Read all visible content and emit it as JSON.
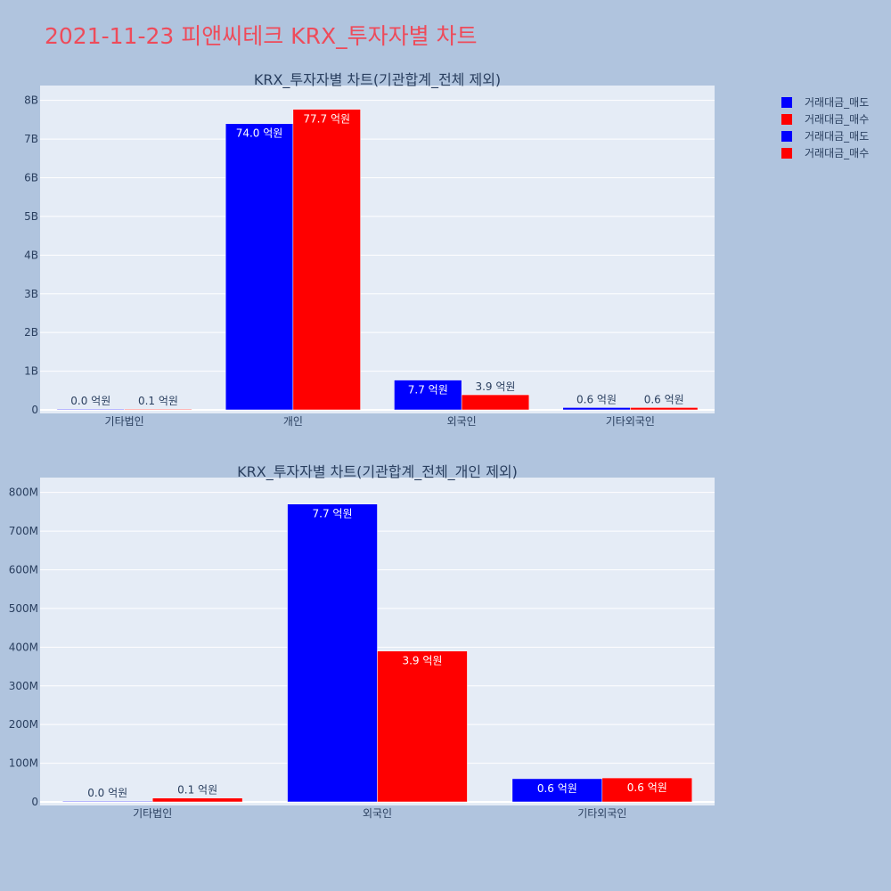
{
  "page": {
    "title": "2021-11-23 피앤씨테크 KRX_투자자별 차트",
    "title_color": "#ee4b5a",
    "background": "#b0c4de",
    "plot_background": "#e5ecf6"
  },
  "legend": {
    "placement": "top-right",
    "items": [
      {
        "label": "거래대금_매도",
        "color": "#0000ff"
      },
      {
        "label": "거래대금_매수",
        "color": "#ff0000"
      },
      {
        "label": "거래대금_매도",
        "color": "#0000ff"
      },
      {
        "label": "거래대금_매수",
        "color": "#ff0000"
      }
    ]
  },
  "chart_data": [
    {
      "type": "bar",
      "title": "KRX_투자자별 차트(기관합계_전체 제외)",
      "categories": [
        "기타법인",
        "개인",
        "외국인",
        "기타외국인"
      ],
      "ylim": [
        0,
        8200000000
      ],
      "yticks": [
        0,
        1000000000,
        2000000000,
        3000000000,
        4000000000,
        5000000000,
        6000000000,
        7000000000,
        8000000000
      ],
      "ytick_labels": [
        "0",
        "1B",
        "2B",
        "3B",
        "4B",
        "5B",
        "6B",
        "7B",
        "8B"
      ],
      "grid": true,
      "series": [
        {
          "name": "거래대금_매도",
          "color": "#0000ff",
          "values": [
            1000000,
            7400000000,
            770000000,
            60000000
          ],
          "labels": [
            "0.0 억원",
            "74.0 억원",
            "7.7 억원",
            "0.6 억원"
          ]
        },
        {
          "name": "거래대금_매수",
          "color": "#ff0000",
          "values": [
            10000000,
            7770000000,
            390000000,
            60000000
          ],
          "labels": [
            "0.1 억원",
            "77.7 억원",
            "3.9 억원",
            "0.6 억원"
          ]
        }
      ]
    },
    {
      "type": "bar",
      "title": "KRX_투자자별 차트(기관합계_전체_개인 제외)",
      "categories": [
        "기타법인",
        "외국인",
        "기타외국인"
      ],
      "ylim": [
        0,
        820000000
      ],
      "yticks": [
        0,
        100000000,
        200000000,
        300000000,
        400000000,
        500000000,
        600000000,
        700000000,
        800000000
      ],
      "ytick_labels": [
        "0",
        "100M",
        "200M",
        "300M",
        "400M",
        "500M",
        "600M",
        "700M",
        "800M"
      ],
      "grid": true,
      "series": [
        {
          "name": "거래대금_매도",
          "color": "#0000ff",
          "values": [
            1000000,
            770000000,
            60000000
          ],
          "labels": [
            "0.0 억원",
            "7.7 억원",
            "0.6 억원"
          ]
        },
        {
          "name": "거래대금_매수",
          "color": "#ff0000",
          "values": [
            10000000,
            390000000,
            62000000
          ],
          "labels": [
            "0.1 억원",
            "3.9 억원",
            "0.6 억원"
          ]
        }
      ]
    }
  ]
}
